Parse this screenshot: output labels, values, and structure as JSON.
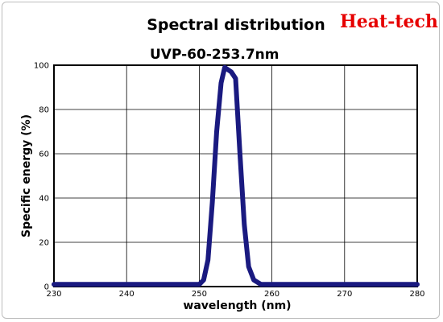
{
  "header": {
    "brand": "Heat-tech"
  },
  "chart_data": {
    "type": "line",
    "title": "Spectral distribution",
    "subtitle": "UVP-60-253.7nm",
    "xlabel": "wavelength (nm)",
    "ylabel": "Specific energy (%)",
    "xlim": [
      230,
      280
    ],
    "ylim": [
      0,
      100
    ],
    "x_ticks": [
      230,
      240,
      250,
      260,
      270,
      280
    ],
    "y_ticks": [
      0,
      20,
      40,
      60,
      80,
      100
    ],
    "grid": true,
    "line_color": "#1a1a80",
    "series": [
      {
        "x": [
          230,
          246,
          250,
          250.6,
          251.2,
          251.8,
          252.4,
          253.0,
          253.5,
          254.4,
          255.0,
          255.6,
          256.2,
          256.8,
          257.5,
          258.5,
          260,
          270,
          280
        ],
        "y": [
          1,
          1,
          1,
          3,
          12,
          38,
          70,
          92,
          99,
          97,
          94,
          60,
          28,
          9,
          3,
          1,
          1,
          1,
          1
        ]
      }
    ]
  }
}
